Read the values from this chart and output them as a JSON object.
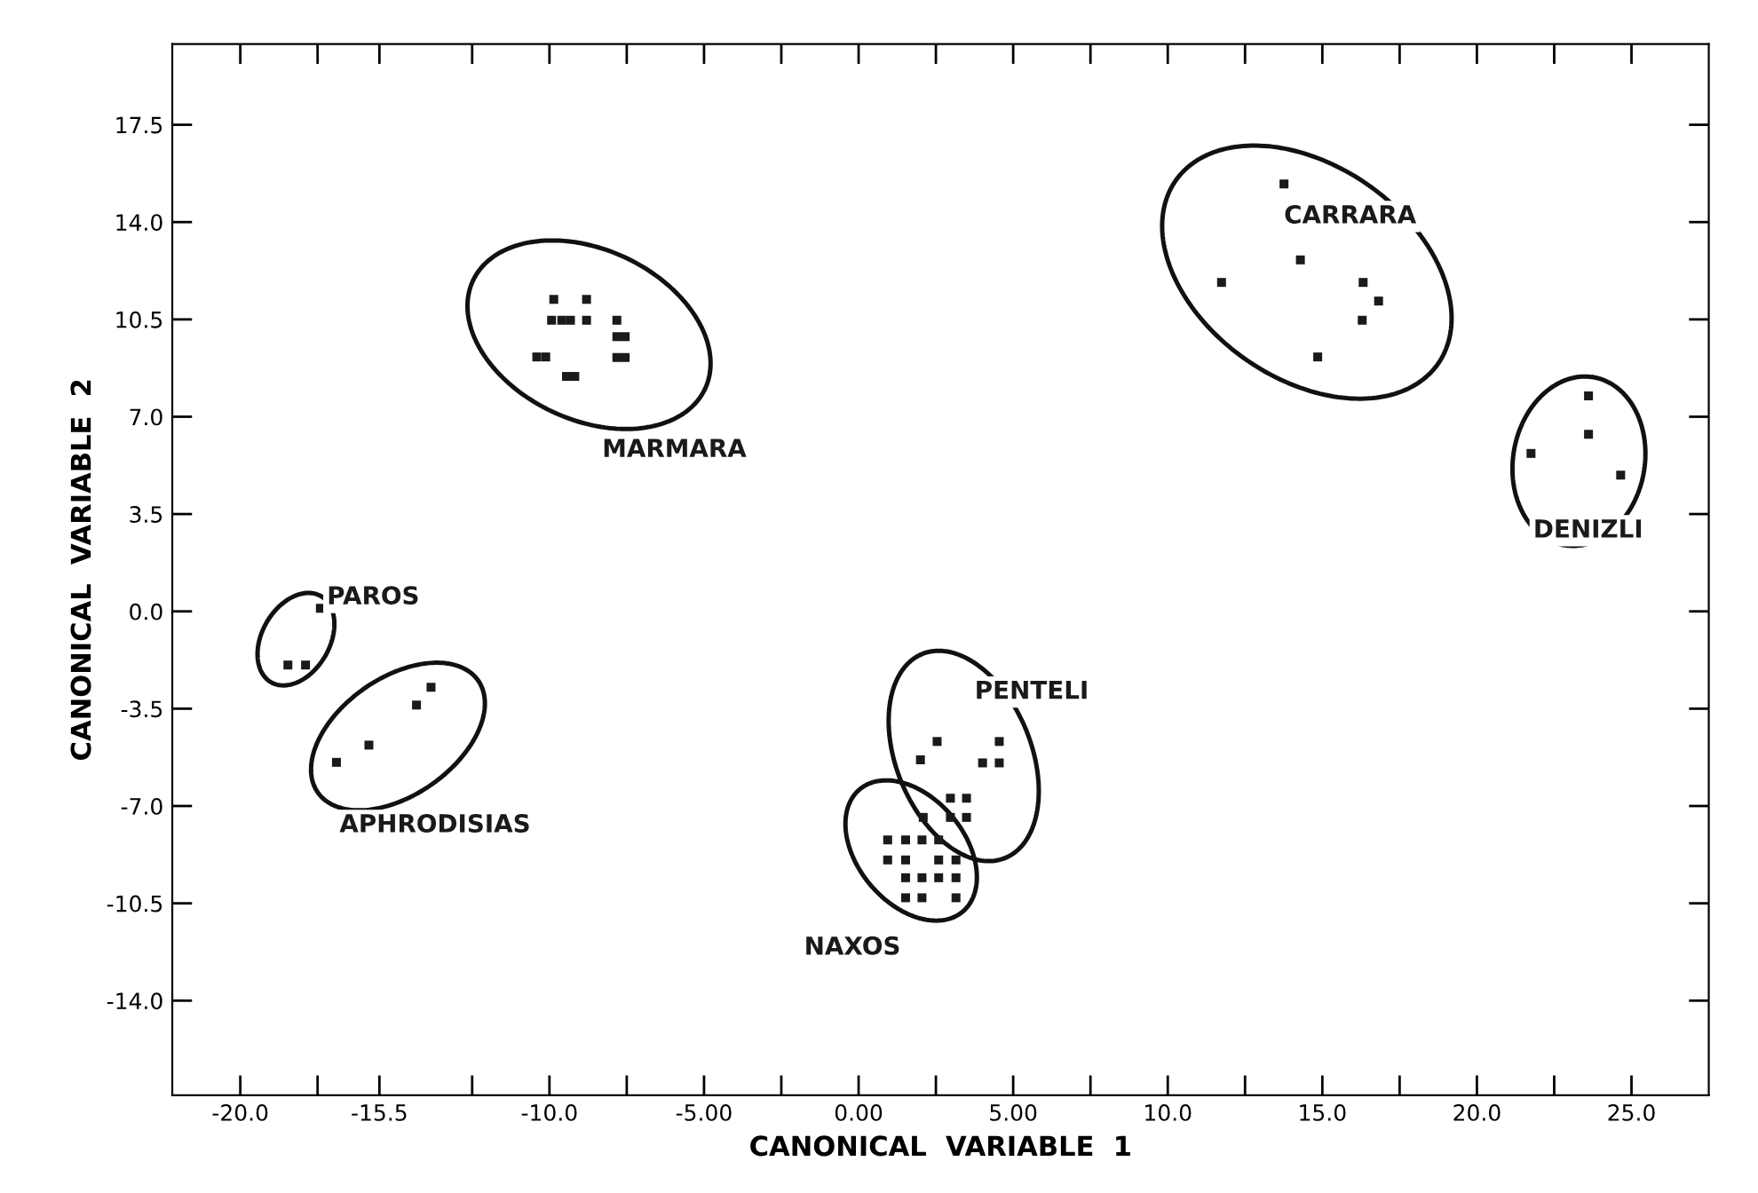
{
  "chart_data": {
    "type": "scatter",
    "xlabel": "CANONICAL  VARIABLE  1",
    "ylabel": "CANONICAL  VARIABLE  2",
    "marker": "square",
    "grid": false,
    "legend": false,
    "xlim": [
      -22.2,
      27.5
    ],
    "ylim": [
      -17.4,
      20.4
    ],
    "xticks": [
      {
        "value": -20,
        "label": "-20.0"
      },
      {
        "value": -17.5,
        "label": null
      },
      -15.5,
      {
        "value": -12.5,
        "label": null
      },
      {
        "value": -10,
        "label": "-10.0"
      },
      {
        "value": -7.5,
        "label": null
      },
      {
        "value": -5,
        "label": "-5.00"
      },
      {
        "value": -2.5,
        "label": null
      },
      {
        "value": 0,
        "label": "0.00"
      },
      {
        "value": 2.5,
        "label": null
      },
      {
        "value": 5,
        "label": "5.00"
      },
      {
        "value": 7.5,
        "label": null
      },
      {
        "value": 10,
        "label": "10.0"
      },
      {
        "value": 12.5,
        "label": null
      },
      {
        "value": 15,
        "label": "15.0"
      },
      {
        "value": 17.5,
        "label": null
      },
      {
        "value": 20,
        "label": "20.0"
      },
      {
        "value": 22.5,
        "label": null
      },
      {
        "value": 25,
        "label": "25.0"
      }
    ],
    "yticks": [
      {
        "value": -14,
        "label": "-14.0"
      },
      {
        "value": -10.5,
        "label": "-10.5"
      },
      {
        "value": -7,
        "label": "-7.0"
      },
      -3.5,
      {
        "value": 0,
        "label": "0.0"
      },
      3.5,
      {
        "value": 7,
        "label": "7.0"
      },
      10.5,
      {
        "value": 14,
        "label": "14.0"
      },
      17.5
    ],
    "series": [
      {
        "name": "MARMARA",
        "color": "#1a1a1a",
        "x": [
          -9.86,
          -8.8,
          -9.93,
          -9.6,
          -9.32,
          -8.8,
          -7.82,
          -7.82,
          -7.55,
          -7.82,
          -7.55,
          -10.41,
          -10.12,
          -9.45,
          -9.18
        ],
        "values": [
          11.22,
          11.22,
          10.47,
          10.47,
          10.47,
          10.47,
          10.47,
          9.88,
          9.88,
          9.13,
          9.13,
          9.15,
          9.15,
          8.45,
          8.45
        ]
      },
      {
        "name": "PAROS",
        "color": "#1a1a1a",
        "x": [
          -17.41,
          -18.46,
          -17.89
        ],
        "values": [
          0.11,
          -1.93,
          -1.93
        ]
      },
      {
        "name": "APHRODISIAS",
        "color": "#1a1a1a",
        "x": [
          -13.83,
          -14.3,
          -15.84,
          -16.89
        ],
        "values": [
          -2.73,
          -3.37,
          -4.81,
          -5.43
        ]
      },
      {
        "name": "PENTELI",
        "color": "#1a1a1a",
        "x": [
          2.54,
          2.0,
          4.55,
          4.01,
          4.55,
          2.97,
          3.49,
          2.97,
          3.49
        ],
        "values": [
          -4.68,
          -5.34,
          -4.68,
          -5.45,
          -5.45,
          -6.72,
          -6.72,
          -7.41,
          -7.41
        ]
      },
      {
        "name": "NAXOS",
        "color": "#1a1a1a",
        "x": [
          2.09,
          0.94,
          1.52,
          2.05,
          2.59,
          0.94,
          1.52,
          2.59,
          3.15,
          1.52,
          2.05,
          2.59,
          3.15,
          1.52,
          2.05,
          3.15
        ],
        "values": [
          -7.41,
          -8.22,
          -8.22,
          -8.22,
          -8.22,
          -8.94,
          -8.94,
          -8.94,
          -8.94,
          -9.58,
          -9.58,
          -9.58,
          -9.58,
          -10.3,
          -10.3,
          -10.3
        ]
      },
      {
        "name": "CARRARA",
        "color": "#1a1a1a",
        "x": [
          13.76,
          14.29,
          11.74,
          16.32,
          16.82,
          16.29,
          14.85
        ],
        "values": [
          15.37,
          12.64,
          11.83,
          11.83,
          11.16,
          10.47,
          9.15
        ]
      },
      {
        "name": "DENIZLI",
        "color": "#1a1a1a",
        "x": [
          23.61,
          23.61,
          21.75,
          24.65
        ],
        "values": [
          7.75,
          6.37,
          5.68,
          4.9
        ]
      }
    ]
  }
}
